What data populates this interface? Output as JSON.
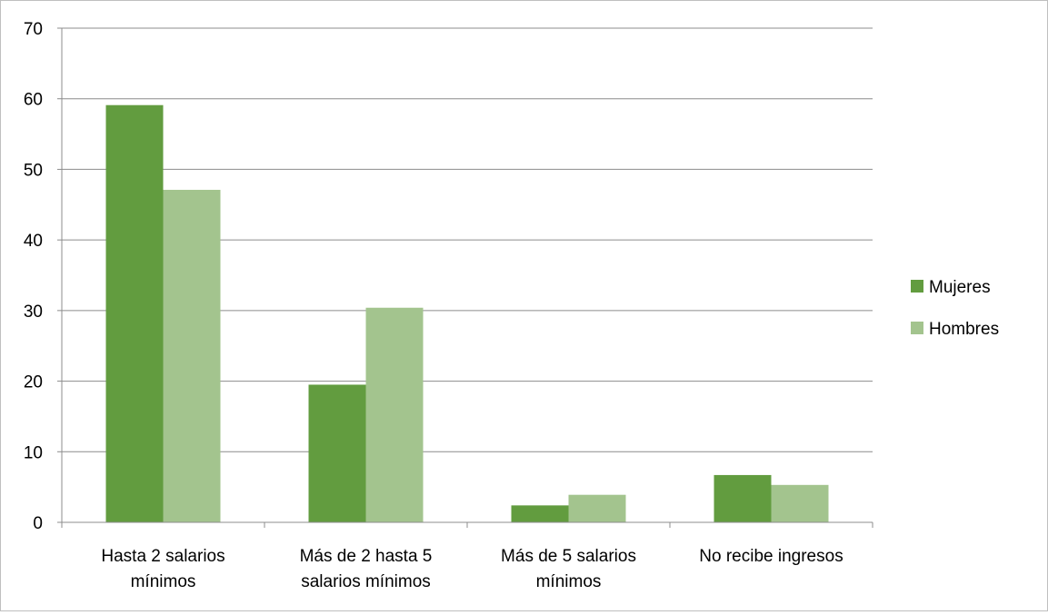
{
  "chart_data": {
    "type": "bar",
    "categories": [
      [
        "Hasta 2 salarios",
        "mínimos"
      ],
      [
        "Más de 2 hasta 5",
        "salarios mínimos"
      ],
      [
        "Más de 5 salarios",
        "mínimos"
      ],
      [
        "No recibe ingresos"
      ]
    ],
    "series": [
      {
        "name": "Mujeres",
        "color": "#629c3f",
        "values": [
          59.1,
          19.5,
          2.4,
          6.7
        ]
      },
      {
        "name": "Hombres",
        "color": "#a3c48e",
        "values": [
          47.1,
          30.4,
          3.9,
          5.3
        ]
      }
    ],
    "ylim": [
      0,
      70
    ],
    "yticks": [
      0,
      10,
      20,
      30,
      40,
      50,
      60,
      70
    ],
    "grid": true,
    "legend_position": "right",
    "gridline_color": "#8c8c8c",
    "axis_color": "#8c8c8c"
  }
}
